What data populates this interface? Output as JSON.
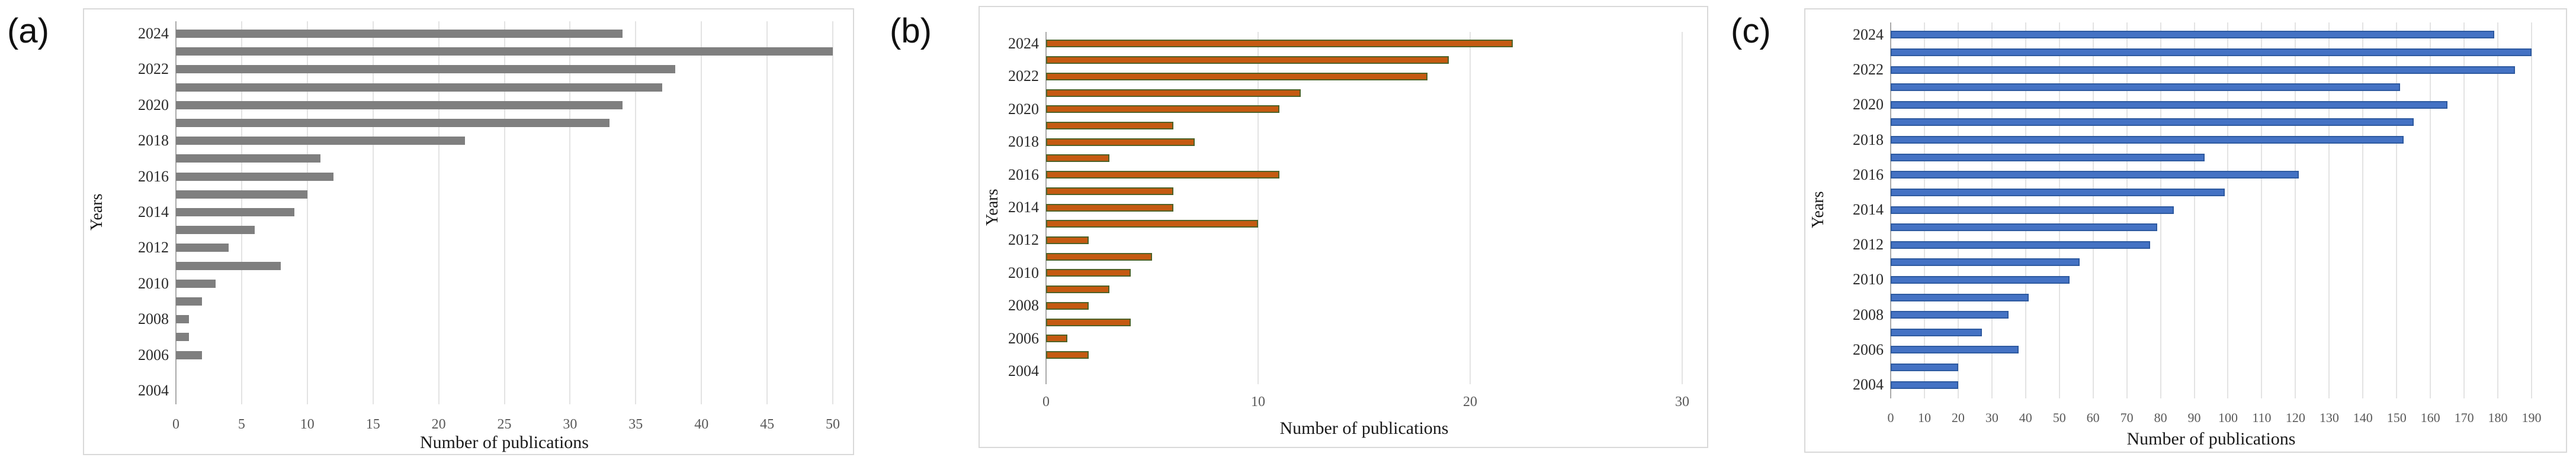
{
  "figure": {
    "background_color": "#ffffff",
    "panel_border_color": "#d9d9d9",
    "gridline_color": "#e3e3e3",
    "axis_line_color": "#a9a9a9",
    "tick_label_color": "#595959",
    "year_label_color": "#2b2b2b",
    "axis_title_color": "#1a1a1a"
  },
  "chart_data": [
    {
      "type": "bar",
      "panel_label": "(a)",
      "orientation": "horizontal",
      "title": "",
      "xlabel": "Number of publications",
      "ylabel": "Years",
      "xlim": [
        0,
        50
      ],
      "xticks": [
        0,
        5,
        10,
        15,
        20,
        25,
        30,
        35,
        40,
        45,
        50
      ],
      "grid": true,
      "legend": null,
      "categories": [
        "2024",
        "2023",
        "2022",
        "2021",
        "2020",
        "2019",
        "2018",
        "2017",
        "2016",
        "2015",
        "2014",
        "2013",
        "2012",
        "2011",
        "2010",
        "2009",
        "2008",
        "2007",
        "2006",
        "2005",
        "2004"
      ],
      "labeled_categories": [
        "2024",
        "2022",
        "2020",
        "2018",
        "2016",
        "2014",
        "2012",
        "2010",
        "2008",
        "2006",
        "2004"
      ],
      "values": [
        34,
        50,
        38,
        37,
        34,
        33,
        22,
        11,
        12,
        10,
        9,
        6,
        4,
        8,
        3,
        2,
        1,
        1,
        2,
        0,
        0
      ],
      "bar_color": "#7f7f7f",
      "bar_border_color": null
    },
    {
      "type": "bar",
      "panel_label": "(b)",
      "orientation": "horizontal",
      "title": "",
      "xlabel": "Number of publications",
      "ylabel": "Years",
      "xlim": [
        0,
        30
      ],
      "xticks": [
        0,
        10,
        20,
        30
      ],
      "grid": true,
      "legend": null,
      "categories": [
        "2024",
        "2023",
        "2022",
        "2021",
        "2020",
        "2019",
        "2018",
        "2017",
        "2016",
        "2015",
        "2014",
        "2013",
        "2012",
        "2011",
        "2010",
        "2009",
        "2008",
        "2007",
        "2006",
        "2005",
        "2004"
      ],
      "labeled_categories": [
        "2024",
        "2022",
        "2020",
        "2018",
        "2016",
        "2014",
        "2012",
        "2010",
        "2008",
        "2006",
        "2004"
      ],
      "values": [
        22,
        19,
        18,
        12,
        11,
        6,
        7,
        3,
        11,
        6,
        6,
        10,
        2,
        5,
        4,
        3,
        2,
        4,
        1,
        2,
        0
      ],
      "bar_color": "#c55a11",
      "bar_border_color": "#4f6228"
    },
    {
      "type": "bar",
      "panel_label": "(c)",
      "orientation": "horizontal",
      "title": "",
      "xlabel": "Number of publications",
      "ylabel": "Years",
      "xlim": [
        0,
        190
      ],
      "xticks": [
        0,
        10,
        20,
        30,
        40,
        50,
        60,
        70,
        80,
        90,
        100,
        110,
        120,
        130,
        140,
        150,
        160,
        170,
        180,
        190
      ],
      "grid": true,
      "legend": null,
      "categories": [
        "2024",
        "2023",
        "2022",
        "2021",
        "2020",
        "2019",
        "2018",
        "2017",
        "2016",
        "2015",
        "2014",
        "2013",
        "2012",
        "2011",
        "2010",
        "2009",
        "2008",
        "2007",
        "2006",
        "2005",
        "2004"
      ],
      "labeled_categories": [
        "2024",
        "2022",
        "2020",
        "2018",
        "2016",
        "2014",
        "2012",
        "2010",
        "2008",
        "2006",
        "2004"
      ],
      "values": [
        179,
        190,
        185,
        151,
        165,
        155,
        152,
        93,
        121,
        99,
        84,
        79,
        77,
        56,
        53,
        41,
        35,
        27,
        38,
        20,
        20
      ],
      "bar_color": "#4472c4",
      "bar_border_color": "#2e5aa0"
    }
  ]
}
